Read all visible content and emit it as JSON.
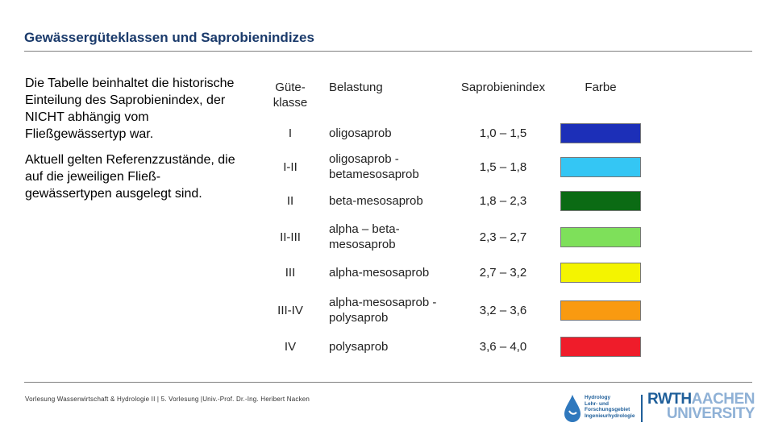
{
  "title": "Gewässergüteklassen und Saprobienindizes",
  "intro": {
    "p1": "Die Tabelle beinhaltet die historische Einteilung des Saprobienindex, der NICHT abhängig vom Fließgewässertyp war.",
    "p2": "Aktuell gelten Referenzzustände, die auf die jeweiligen Fließ- gewässertypen ausgelegt sind."
  },
  "table": {
    "headers": [
      "Güte- klasse",
      "Belastung",
      "Saprobienindex",
      "Farbe"
    ],
    "rows": [
      {
        "klasse": "I",
        "belastung": "oligosaprob",
        "index": "1,0 – 1,5",
        "color": "#1c2fb8"
      },
      {
        "klasse": "I-II",
        "belastung": "oligosaprob - betamesosaprob",
        "index": "1,5 – 1,8",
        "color": "#34c6f4"
      },
      {
        "klasse": "II",
        "belastung": "beta-mesosaprob",
        "index": "1,8 – 2,3",
        "color": "#0b6b14"
      },
      {
        "klasse": "II-III",
        "belastung": "alpha – beta-mesosaprob",
        "index": "2,3 – 2,7",
        "color": "#7ee05a"
      },
      {
        "klasse": "III",
        "belastung": "alpha-mesosaprob",
        "index": "2,7 – 3,2",
        "color": "#f4f400"
      },
      {
        "klasse": "III-IV",
        "belastung": "alpha-mesosaprob - polysaprob",
        "index": "3,2 – 3,6",
        "color": "#f99a10"
      },
      {
        "klasse": "IV",
        "belastung": "polysaprob",
        "index": "3,6 – 4,0",
        "color": "#ef1c2a"
      }
    ]
  },
  "footer": "Vorlesung Wasserwirtschaft & Hydrologie II | 5. Vorlesung |Univ.-Prof. Dr.-Ing. Heribert Nacken",
  "logos": {
    "ihw_text": [
      "Hydrology",
      "Lehr- und",
      "Forschungsgebiet",
      "Ingenieurhydrologie"
    ],
    "rwth_line1": "RWTH",
    "rwth_line1b": "AACHEN",
    "rwth_line2": "UNIVERSITY"
  }
}
